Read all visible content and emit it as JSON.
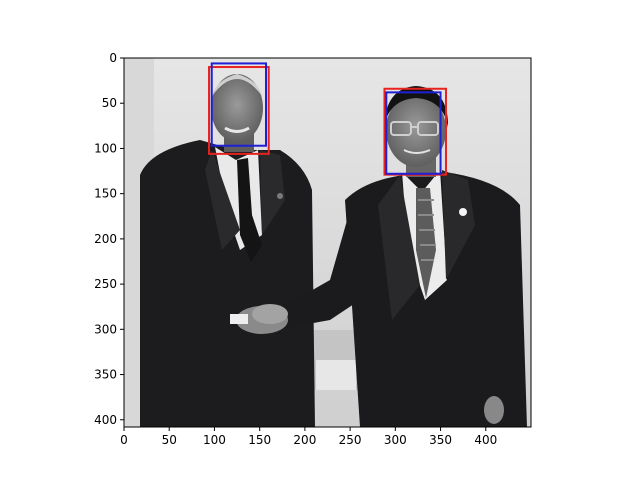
{
  "figure": {
    "description_colors": {
      "background": "#ffffff",
      "box_red": "#e8221f",
      "box_blue": "#1f1fd6"
    },
    "axes": {
      "x_ticks": [
        "0",
        "50",
        "100",
        "150",
        "200",
        "250",
        "300",
        "350",
        "400"
      ],
      "y_ticks": [
        "0",
        "50",
        "100",
        "150",
        "200",
        "250",
        "300",
        "350",
        "400"
      ],
      "x_range": [
        0,
        450
      ],
      "y_range": [
        408,
        0
      ]
    },
    "photo": {
      "kind": "grayscale photograph",
      "subject": "two men in dark suits shaking hands"
    },
    "boxes": [
      {
        "color": "#e8221f",
        "x0": 94,
        "y0": 10,
        "x1": 160,
        "y1": 106
      },
      {
        "color": "#1f1fd6",
        "x0": 97,
        "y0": 6,
        "x1": 157,
        "y1": 97
      },
      {
        "color": "#e8221f",
        "x0": 288,
        "y0": 34,
        "x1": 356,
        "y1": 129
      },
      {
        "color": "#1f1fd6",
        "x0": 290,
        "y0": 38,
        "x1": 350,
        "y1": 128
      }
    ]
  }
}
